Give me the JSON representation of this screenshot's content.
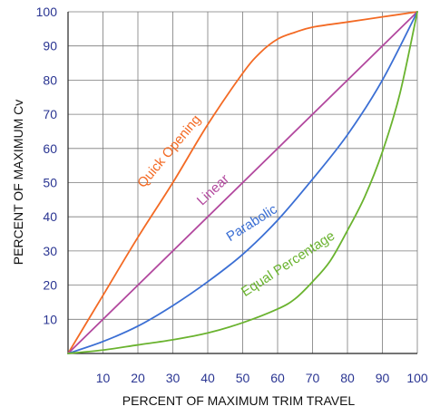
{
  "chart_data": {
    "type": "line",
    "title": "",
    "xlabel": "PERCENT OF MAXIMUM TRIM TRAVEL",
    "ylabel": "PERCENT OF MAXIMUM Cv",
    "xlim": [
      0,
      100
    ],
    "ylim": [
      0,
      100
    ],
    "grid": true,
    "x_ticks": [
      "10",
      "20",
      "30",
      "40",
      "50",
      "60",
      "70",
      "80",
      "90",
      "100"
    ],
    "y_ticks": [
      "10",
      "20",
      "30",
      "40",
      "50",
      "60",
      "70",
      "80",
      "90",
      "100"
    ],
    "series": [
      {
        "name": "Quick Opening",
        "color": "#f36a24",
        "points": [
          [
            0,
            0
          ],
          [
            10,
            17
          ],
          [
            20,
            34
          ],
          [
            30,
            50
          ],
          [
            40,
            67
          ],
          [
            50,
            82
          ],
          [
            55,
            88
          ],
          [
            60,
            92
          ],
          [
            65,
            94
          ],
          [
            70,
            95.5
          ],
          [
            80,
            97
          ],
          [
            90,
            98.5
          ],
          [
            100,
            100
          ]
        ]
      },
      {
        "name": "Linear",
        "color": "#b2489e",
        "points": [
          [
            0,
            0
          ],
          [
            100,
            100
          ]
        ]
      },
      {
        "name": "Parabolic",
        "color": "#3b6fd4",
        "points": [
          [
            0,
            0
          ],
          [
            10,
            3.5
          ],
          [
            20,
            8
          ],
          [
            30,
            14
          ],
          [
            40,
            21
          ],
          [
            50,
            29
          ],
          [
            60,
            39
          ],
          [
            70,
            51
          ],
          [
            80,
            64
          ],
          [
            90,
            80
          ],
          [
            100,
            100
          ]
        ]
      },
      {
        "name": "Equal Percentage",
        "color": "#6ab32f",
        "points": [
          [
            0,
            0
          ],
          [
            10,
            1
          ],
          [
            20,
            2.5
          ],
          [
            30,
            4
          ],
          [
            40,
            6
          ],
          [
            50,
            9
          ],
          [
            60,
            13
          ],
          [
            65,
            16
          ],
          [
            70,
            21
          ],
          [
            75,
            27
          ],
          [
            80,
            36
          ],
          [
            85,
            46
          ],
          [
            90,
            59
          ],
          [
            95,
            76
          ],
          [
            100,
            100
          ]
        ]
      }
    ]
  }
}
